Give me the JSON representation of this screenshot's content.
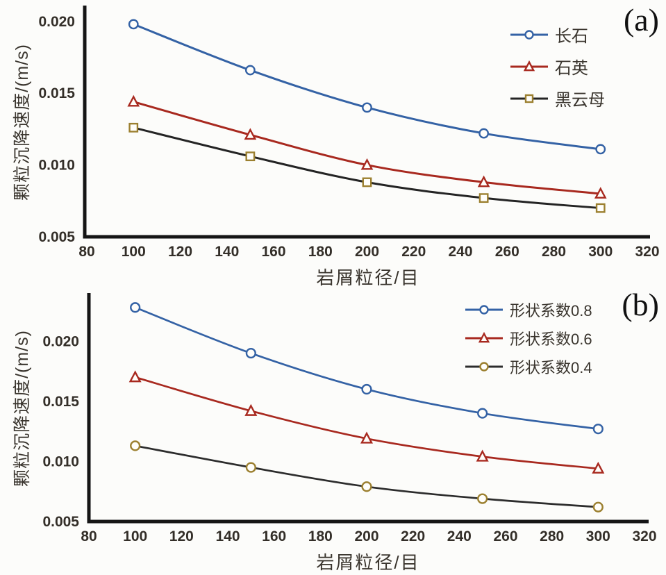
{
  "figure": {
    "background": "#fcfcfa",
    "text_color": "#3a352e",
    "axis_color": "#151515"
  },
  "chart_data": [
    {
      "id": "a",
      "type": "line",
      "panel_label": "(a)",
      "xlabel": "岩屑粒径/目",
      "ylabel": "颗粒沉降速度/(m/s)",
      "grid": false,
      "legend_position": "top-right-inside",
      "x": [
        100,
        150,
        200,
        250,
        300
      ],
      "xticks": [
        80,
        100,
        120,
        140,
        160,
        180,
        200,
        220,
        240,
        260,
        280,
        300,
        320
      ],
      "ytick_labels": [
        "0.005",
        "0.010",
        "0.015",
        "0.020"
      ],
      "xlim": [
        80,
        320
      ],
      "ylim": [
        0.005,
        0.0211
      ],
      "series": [
        {
          "name": "长石",
          "color": "#3462a5",
          "marker": "circle",
          "marker_color": "#3462a5",
          "values": [
            0.0198,
            0.0166,
            0.014,
            0.0122,
            0.0111
          ]
        },
        {
          "name": "石英",
          "color": "#a8291f",
          "marker": "triangle",
          "marker_color": "#a8291f",
          "values": [
            0.0144,
            0.0121,
            0.01,
            0.0088,
            0.008
          ]
        },
        {
          "name": "黑云母",
          "color": "#242424",
          "marker": "square",
          "marker_color": "#9c8030",
          "values": [
            0.0126,
            0.0106,
            0.0088,
            0.0077,
            0.007
          ]
        }
      ]
    },
    {
      "id": "b",
      "type": "line",
      "panel_label": "(b)",
      "xlabel": "岩屑粒径/目",
      "ylabel": "颗粒沉降速度/(m/s)",
      "grid": false,
      "legend_position": "top-right-inside",
      "x": [
        100,
        150,
        200,
        250,
        300
      ],
      "xticks": [
        80,
        100,
        120,
        140,
        160,
        180,
        200,
        220,
        240,
        260,
        280,
        300,
        320
      ],
      "ytick_labels": [
        "0.005",
        "0.010",
        "0.015",
        "0.020"
      ],
      "xlim": [
        80,
        320
      ],
      "ylim": [
        0.005,
        0.024
      ],
      "series": [
        {
          "name": "形状系数0.8",
          "color": "#3462a5",
          "marker": "circle",
          "marker_color": "#3462a5",
          "values": [
            0.0228,
            0.019,
            0.016,
            0.014,
            0.0127
          ]
        },
        {
          "name": "形状系数0.6",
          "color": "#a8291f",
          "marker": "triangle",
          "marker_color": "#a8291f",
          "values": [
            0.017,
            0.0142,
            0.0119,
            0.0104,
            0.0094
          ]
        },
        {
          "name": "形状系数0.4",
          "color": "#2c2c2c",
          "marker": "circle",
          "marker_color": "#9c8030",
          "values": [
            0.0113,
            0.0095,
            0.0079,
            0.0069,
            0.0062
          ]
        }
      ]
    }
  ]
}
